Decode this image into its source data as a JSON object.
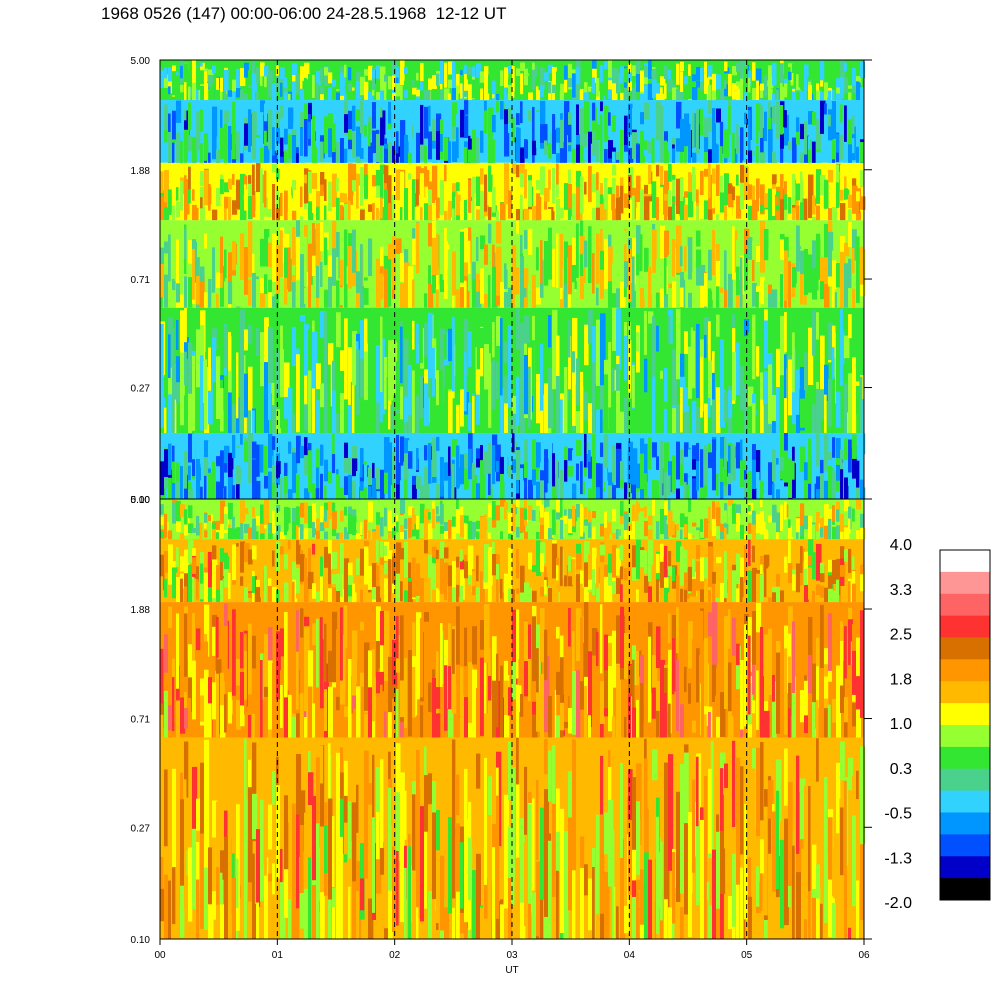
{
  "title": "1968 0526 (147) 00:00-06:00 24-28.5.1968  12-12 UT",
  "chart_data": [
    {
      "type": "heatmap",
      "panel": "upper",
      "yticks": [
        "5.00",
        "1.88",
        "0.71",
        "0.27",
        "0.10"
      ],
      "ylim": [
        0.1,
        5.0
      ],
      "yscale": "log",
      "xlim": [
        0,
        6
      ],
      "bands": [
        {
          "y_from": 5.0,
          "y_to": 3.5,
          "typical_value": 0.3
        },
        {
          "y_from": 3.5,
          "y_to": 2.0,
          "typical_value": -0.5
        },
        {
          "y_from": 2.0,
          "y_to": 1.2,
          "typical_value": 1.4
        },
        {
          "y_from": 1.2,
          "y_to": 0.55,
          "typical_value": 0.9
        },
        {
          "y_from": 0.55,
          "y_to": 0.18,
          "typical_value": 0.3
        },
        {
          "y_from": 0.18,
          "y_to": 0.1,
          "typical_value": -0.5
        }
      ]
    },
    {
      "type": "heatmap",
      "panel": "lower",
      "yticks": [
        "5.00",
        "1.88",
        "0.71",
        "0.27",
        "0.10"
      ],
      "ylim": [
        0.1,
        5.0
      ],
      "yscale": "log",
      "xlim": [
        0,
        6
      ],
      "xticks": [
        "00",
        "01",
        "02",
        "03",
        "04",
        "05",
        "06"
      ],
      "xlabel": "UT",
      "bands": [
        {
          "y_from": 5.0,
          "y_to": 3.5,
          "typical_value": 0.9
        },
        {
          "y_from": 3.5,
          "y_to": 2.0,
          "typical_value": 1.6
        },
        {
          "y_from": 2.0,
          "y_to": 0.6,
          "typical_value": 2.0
        },
        {
          "y_from": 0.6,
          "y_to": 0.1,
          "typical_value": 1.6
        }
      ]
    }
  ],
  "colorbar": {
    "labels": [
      "4.0",
      "3.3",
      "2.5",
      "1.8",
      "1.0",
      "0.3",
      "-0.5",
      "-1.3",
      "-2.0"
    ],
    "colors": [
      "#ffffff",
      "#ff9696",
      "#ff6464",
      "#ff3232",
      "#d87000",
      "#ff9600",
      "#ffba00",
      "#ffff00",
      "#96ff32",
      "#32e632",
      "#4ad28c",
      "#32d2ff",
      "#0096ff",
      "#0050ff",
      "#0000c8",
      "#000000"
    ]
  }
}
